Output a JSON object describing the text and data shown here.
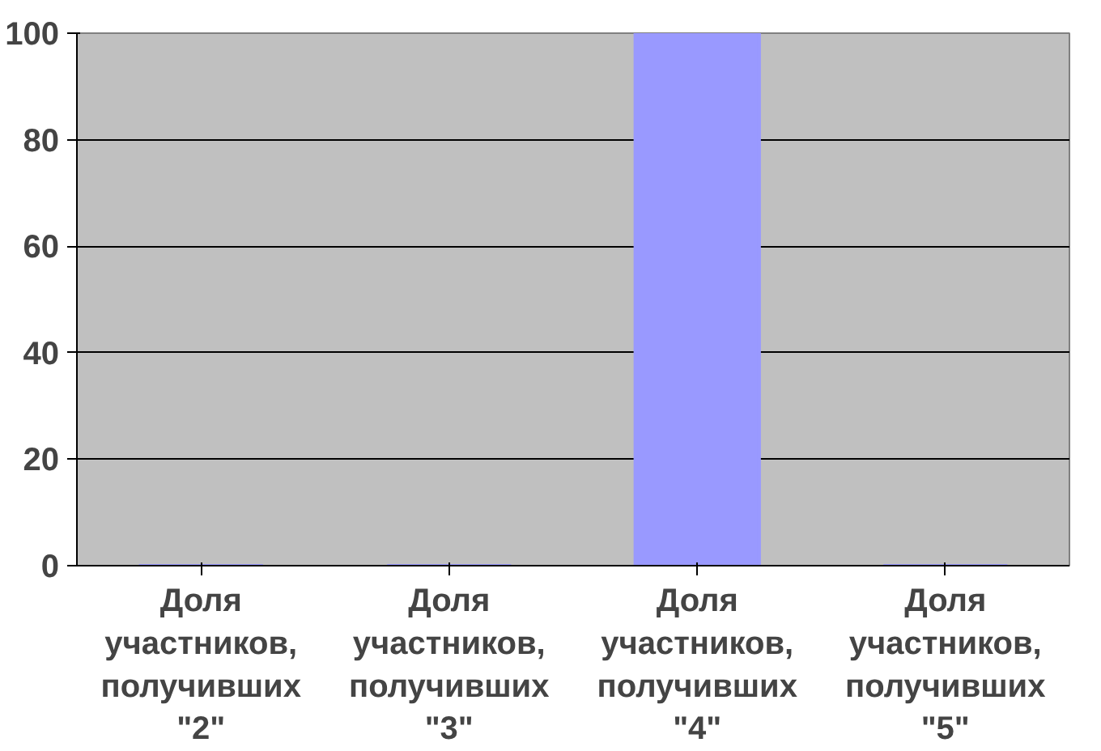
{
  "chart_data": {
    "type": "bar",
    "categories": [
      "Доля участников, получивших \"2\"",
      "Доля участников, получивших \"3\"",
      "Доля участников, получивших \"4\"",
      "Доля участников, получивших \"5\""
    ],
    "values": [
      0,
      0,
      100,
      0
    ],
    "color": "#9999ff",
    "ylim": [
      0,
      100
    ],
    "yticks": [
      0,
      20,
      40,
      60,
      80,
      100
    ],
    "grid": "y"
  }
}
